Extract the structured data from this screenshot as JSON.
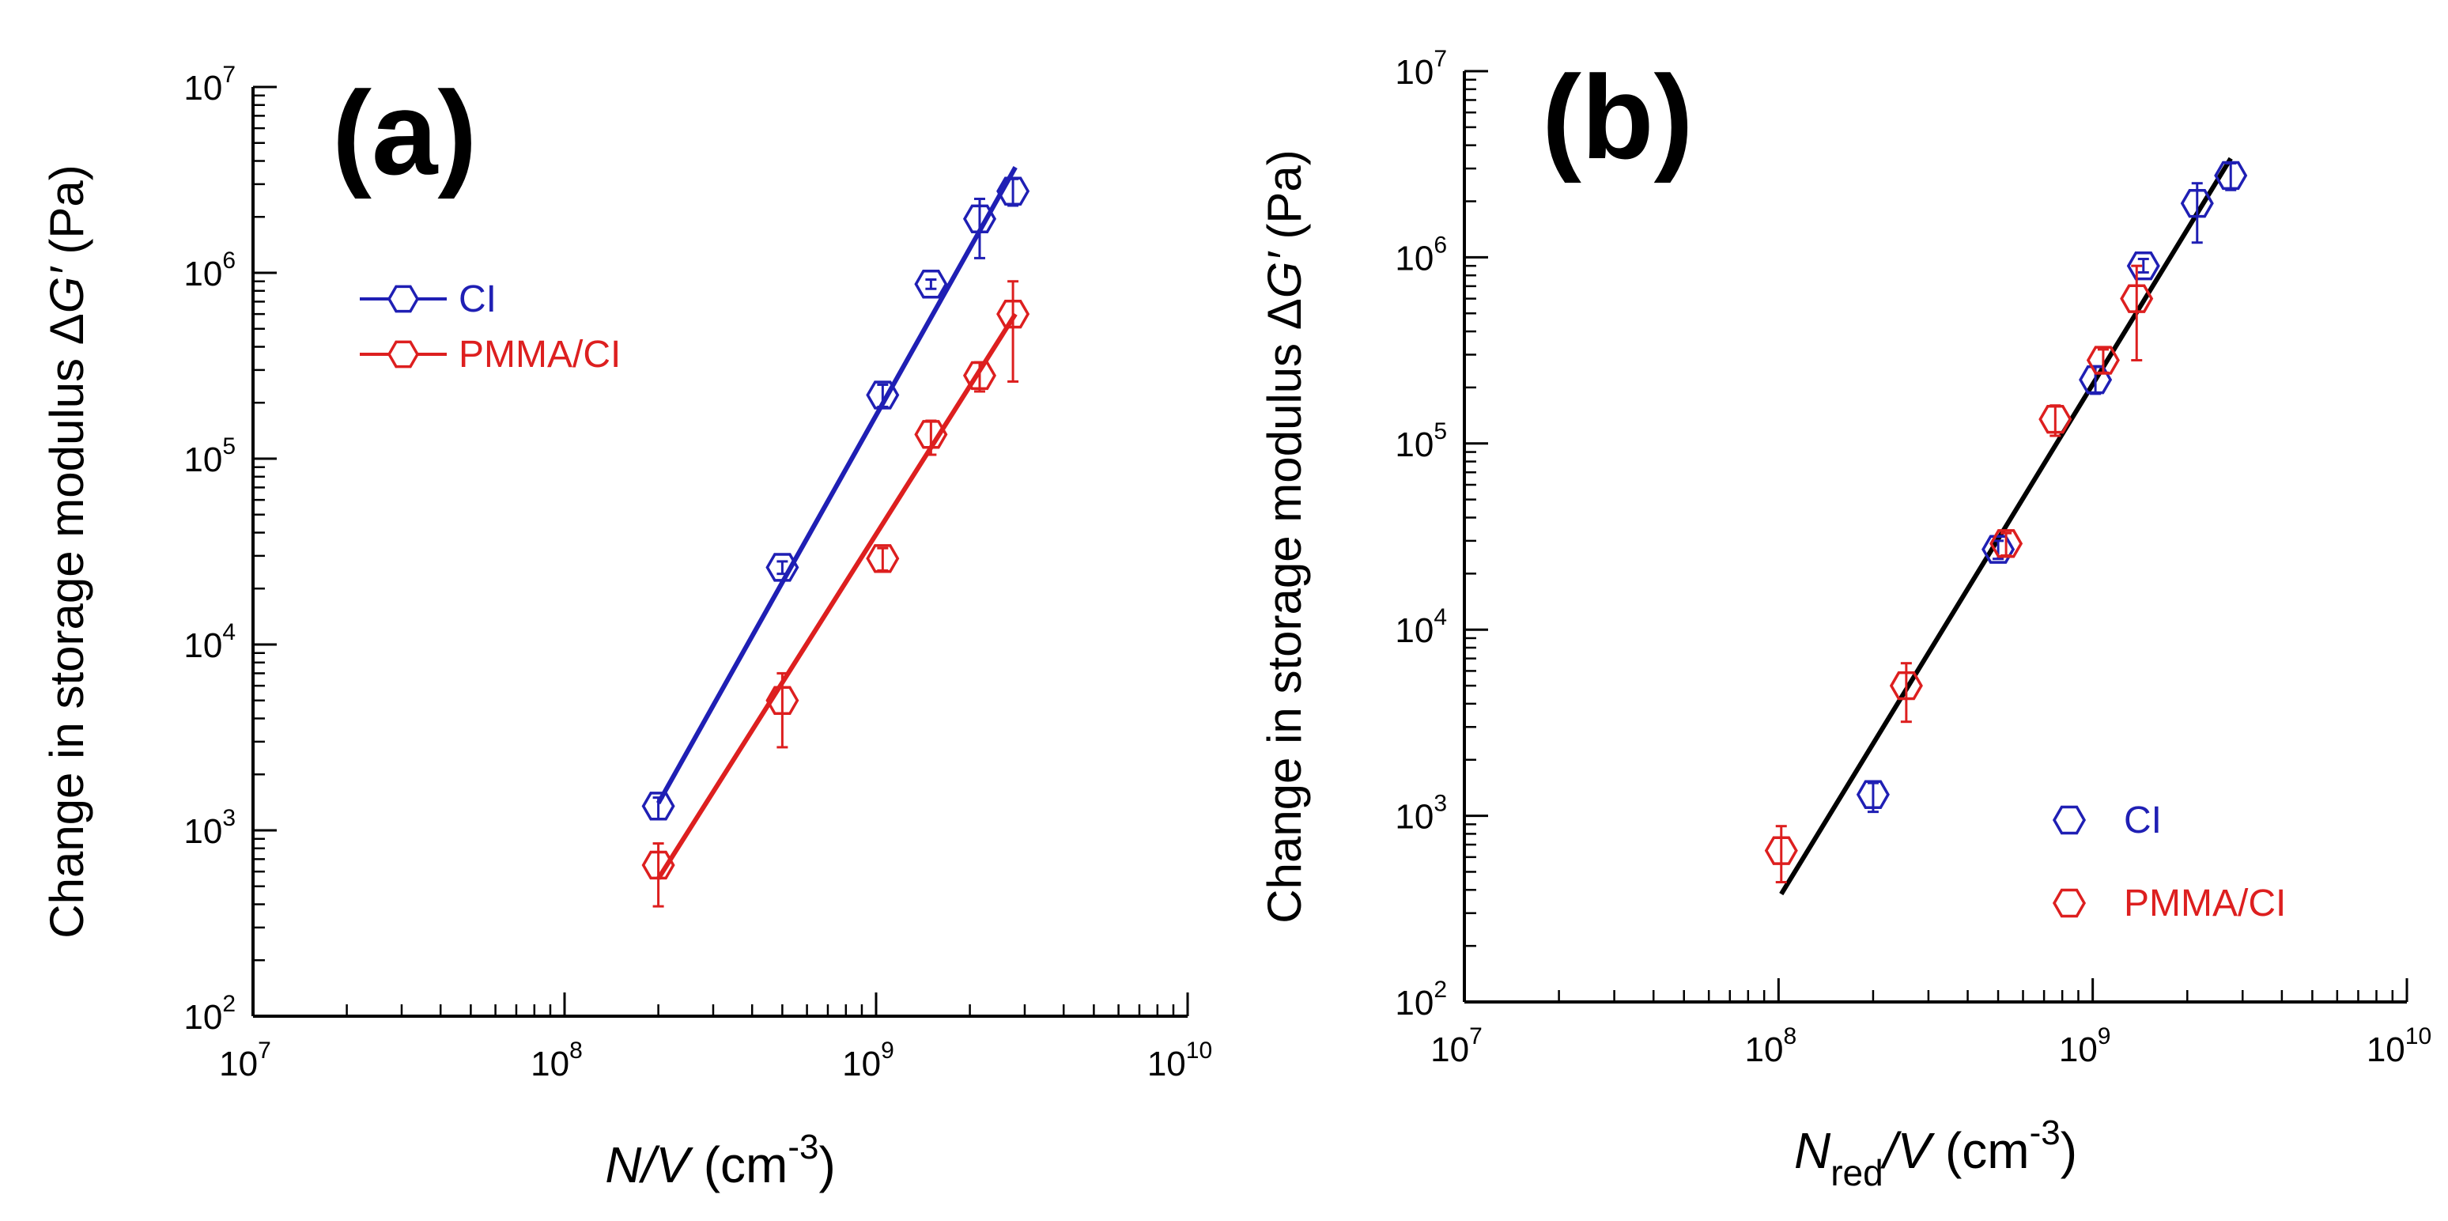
{
  "colors": {
    "CI": "#1f1fb4",
    "PMMA/CI": "#dd1f1f",
    "master": "#000000",
    "axis": "#000000"
  },
  "chart_data": [
    {
      "type": "scatter",
      "panel_label": "(a)",
      "xlabel": {
        "main": "N/V",
        "unit_open": " (cm",
        "unit_sup": "-3",
        "unit_close": ")"
      },
      "ylabel": {
        "prefix": "Change in storage modulus ",
        "delta": "Δ",
        "italic": "G′",
        "unit": " (Pa)"
      },
      "xscale": "log",
      "yscale": "log",
      "xlim": [
        10000000.0,
        10000000000.0
      ],
      "ylim": [
        100.0,
        10000000.0
      ],
      "x_ticks": [
        {
          "value": 10000000.0,
          "base": "10",
          "exp": "7"
        },
        {
          "value": 100000000.0,
          "base": "10",
          "exp": "8"
        },
        {
          "value": 1000000000.0,
          "base": "10",
          "exp": "9"
        },
        {
          "value": 10000000000.0,
          "base": "10",
          "exp": "10"
        }
      ],
      "y_ticks": [
        {
          "value": 100.0,
          "base": "10",
          "exp": "2"
        },
        {
          "value": 1000.0,
          "base": "10",
          "exp": "3"
        },
        {
          "value": 10000.0,
          "base": "10",
          "exp": "4"
        },
        {
          "value": 100000.0,
          "base": "10",
          "exp": "5"
        },
        {
          "value": 1000000.0,
          "base": "10",
          "exp": "6"
        },
        {
          "value": 10000000.0,
          "base": "10",
          "exp": "7"
        }
      ],
      "legend": {
        "position": "top-left",
        "style": "line"
      },
      "series": [
        {
          "name": "CI",
          "color_key": "CI",
          "marker": "hexagon-open",
          "show_in_legend": true,
          "points": [
            {
              "x": 200000000.0,
              "y": 1350.0,
              "err_lo": 1150.0,
              "err_hi": 1500.0
            },
            {
              "x": 500000000.0,
              "y": 26000.0,
              "err_lo": 24000.0,
              "err_hi": 28000.0
            },
            {
              "x": 1050000000.0,
              "y": 220000.0,
              "err_lo": 190000.0,
              "err_hi": 250000.0
            },
            {
              "x": 1500000000.0,
              "y": 870000.0,
              "err_lo": 820000.0,
              "err_hi": 920000.0
            },
            {
              "x": 2150000000.0,
              "y": 1950000.0,
              "err_lo": 1200000.0,
              "err_hi": 2500000.0
            },
            {
              "x": 2750000000.0,
              "y": 2750000.0,
              "err_lo": 2300000.0,
              "err_hi": 3200000.0
            }
          ],
          "fit": {
            "x": [
              200000000.0,
              2800000000.0
            ],
            "y": [
              1400.0,
              3700000.0
            ]
          }
        },
        {
          "name": "PMMA/CI",
          "color_key": "PMMA/CI",
          "marker": "hexagon-open",
          "show_in_legend": true,
          "points": [
            {
              "x": 200000000.0,
              "y": 650.0,
              "err_lo": 390.0,
              "err_hi": 850.0
            },
            {
              "x": 500000000.0,
              "y": 5000.0,
              "err_lo": 2800.0,
              "err_hi": 7000.0
            },
            {
              "x": 1050000000.0,
              "y": 29000.0,
              "err_lo": 25000.0,
              "err_hi": 33000.0
            },
            {
              "x": 1500000000.0,
              "y": 135000.0,
              "err_lo": 105000.0,
              "err_hi": 160000.0
            },
            {
              "x": 2150000000.0,
              "y": 280000.0,
              "err_lo": 230000.0,
              "err_hi": 330000.0
            },
            {
              "x": 2750000000.0,
              "y": 600000.0,
              "err_lo": 260000.0,
              "err_hi": 900000.0
            }
          ],
          "fit": {
            "x": [
              200000000.0,
              2800000000.0
            ],
            "y": [
              550.0,
              600000.0
            ]
          }
        }
      ]
    },
    {
      "type": "scatter",
      "panel_label": "(b)",
      "xlabel": {
        "main": "N",
        "sub": "red",
        "main2": "/V",
        "unit_open": " (cm",
        "unit_sup": "-3",
        "unit_close": ")"
      },
      "ylabel": {
        "prefix": "Change in storage modulus ",
        "delta": "Δ",
        "italic": "G′",
        "unit": " (Pa)"
      },
      "xscale": "log",
      "yscale": "log",
      "xlim": [
        10000000.0,
        10000000000.0
      ],
      "ylim": [
        100.0,
        10000000.0
      ],
      "x_ticks": [
        {
          "value": 10000000.0,
          "base": "10",
          "exp": "7"
        },
        {
          "value": 100000000.0,
          "base": "10",
          "exp": "8"
        },
        {
          "value": 1000000000.0,
          "base": "10",
          "exp": "9"
        },
        {
          "value": 10000000000.0,
          "base": "10",
          "exp": "10"
        }
      ],
      "y_ticks": [
        {
          "value": 100.0,
          "base": "10",
          "exp": "2"
        },
        {
          "value": 1000.0,
          "base": "10",
          "exp": "3"
        },
        {
          "value": 10000.0,
          "base": "10",
          "exp": "4"
        },
        {
          "value": 100000.0,
          "base": "10",
          "exp": "5"
        },
        {
          "value": 1000000.0,
          "base": "10",
          "exp": "6"
        },
        {
          "value": 10000000.0,
          "base": "10",
          "exp": "7"
        }
      ],
      "legend": {
        "position": "bottom-right",
        "style": "marker"
      },
      "series": [
        {
          "name": "CI",
          "color_key": "CI",
          "marker": "hexagon-open",
          "show_in_legend": true,
          "points": [
            {
              "x": 200000000.0,
              "y": 1300.0,
              "err_lo": 1050.0,
              "err_hi": 1500.0
            },
            {
              "x": 500000000.0,
              "y": 27000.0,
              "err_lo": 24000.0,
              "err_hi": 30000.0
            },
            {
              "x": 1020000000.0,
              "y": 220000.0,
              "err_lo": 185000.0,
              "err_hi": 260000.0
            },
            {
              "x": 1450000000.0,
              "y": 900000.0,
              "err_lo": 830000.0,
              "err_hi": 980000.0
            },
            {
              "x": 2150000000.0,
              "y": 1950000.0,
              "err_lo": 1200000.0,
              "err_hi": 2500000.0
            },
            {
              "x": 2750000000.0,
              "y": 2750000.0,
              "err_lo": 2300000.0,
              "err_hi": 3200000.0
            }
          ]
        },
        {
          "name": "PMMA/CI",
          "color_key": "PMMA/CI",
          "marker": "hexagon-open",
          "show_in_legend": true,
          "points": [
            {
              "x": 102000000.0,
              "y": 650.0,
              "err_lo": 440.0,
              "err_hi": 880.0
            },
            {
              "x": 255000000.0,
              "y": 5000.0,
              "err_lo": 3200.0,
              "err_hi": 6600.0
            },
            {
              "x": 530000000.0,
              "y": 29000.0,
              "err_lo": 25000.0,
              "err_hi": 33000.0
            },
            {
              "x": 760000000.0,
              "y": 135000.0,
              "err_lo": 110000.0,
              "err_hi": 160000.0
            },
            {
              "x": 1080000000.0,
              "y": 280000.0,
              "err_lo": 240000.0,
              "err_hi": 320000.0
            },
            {
              "x": 1380000000.0,
              "y": 600000.0,
              "err_lo": 280000.0,
              "err_hi": 900000.0
            }
          ]
        },
        {
          "name": "",
          "color_key": "master",
          "marker": "none",
          "show_in_legend": false,
          "points": [],
          "fit": {
            "x": [
              102000000.0,
              2750000000.0
            ],
            "y": [
              380.0,
              3400000.0
            ]
          }
        }
      ]
    }
  ]
}
